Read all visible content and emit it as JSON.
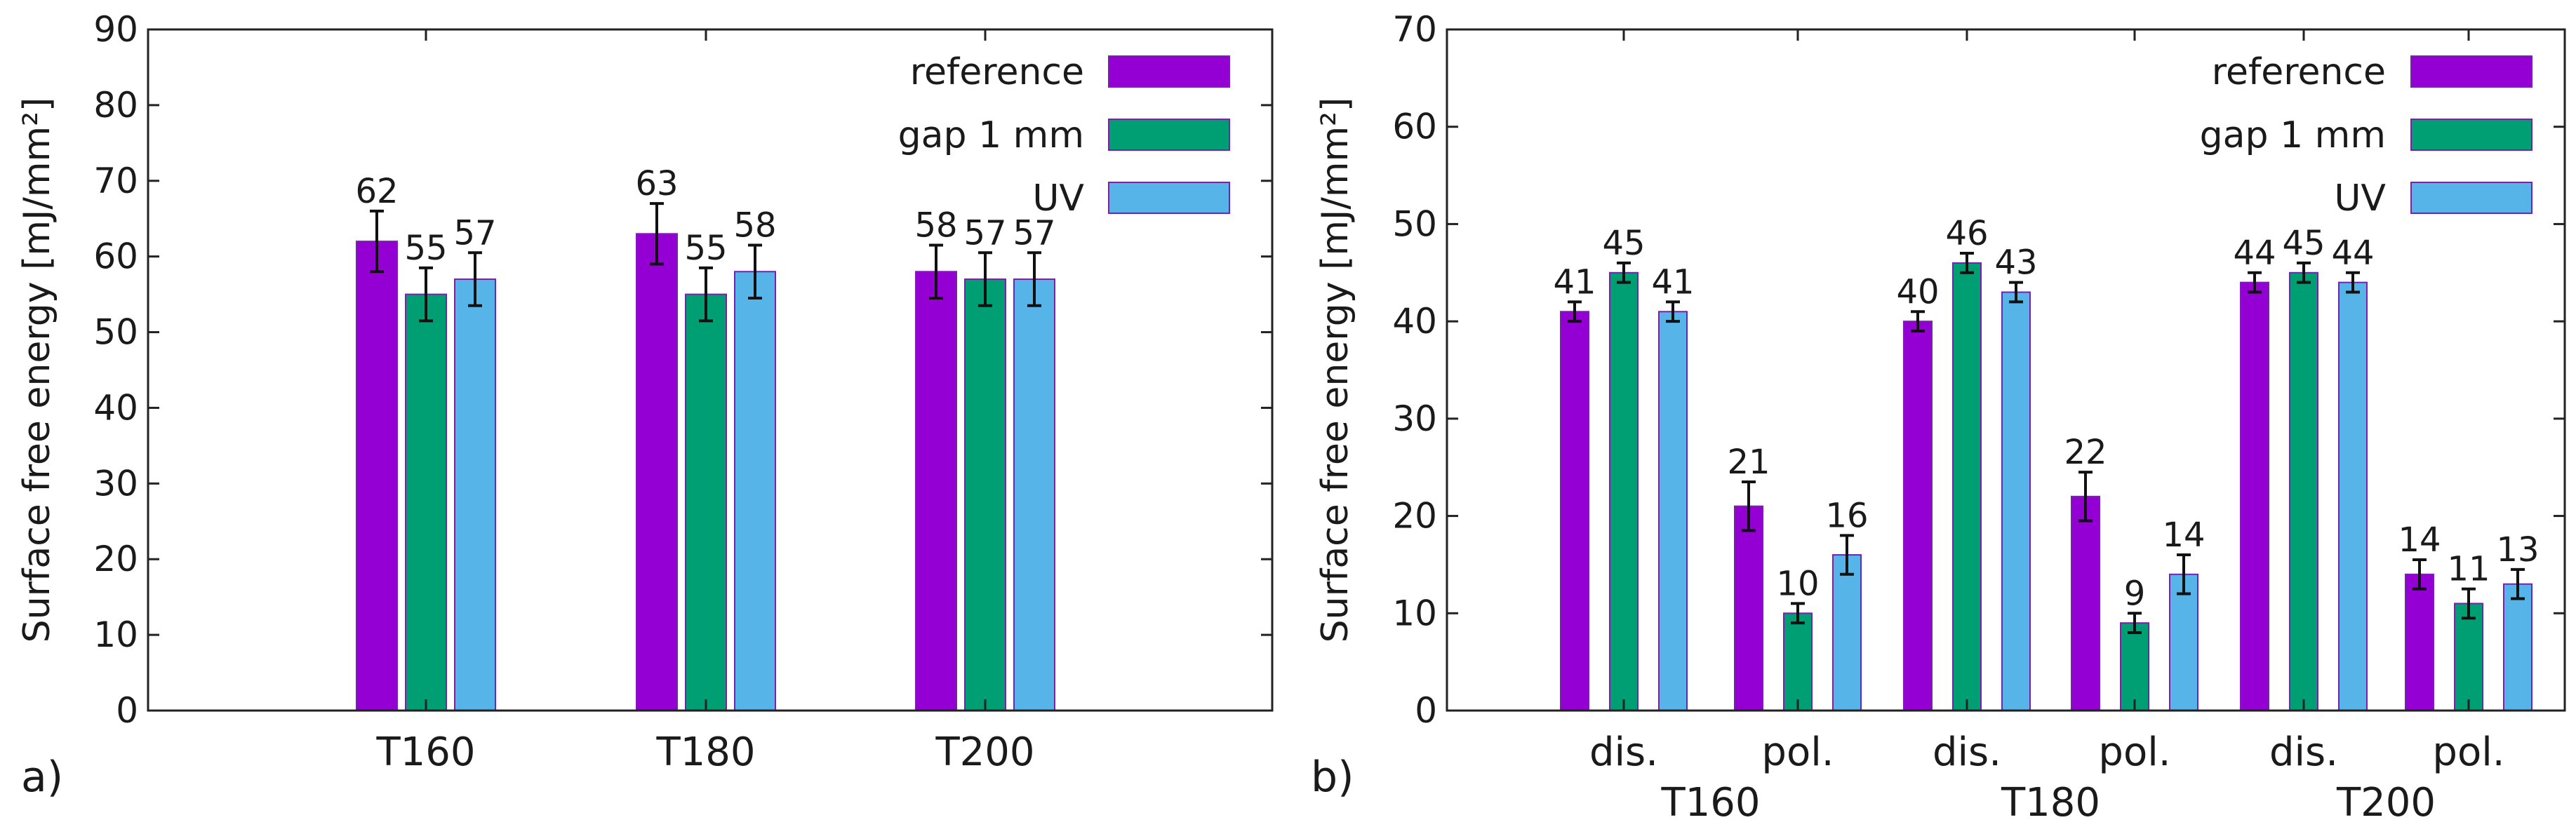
{
  "chart_data": [
    {
      "type": "bar",
      "panel_label": "a)",
      "categories": [
        "T160",
        "T180",
        "T200"
      ],
      "series": [
        {
          "name": "reference",
          "color": "#9400d3",
          "values": [
            62,
            63,
            58
          ],
          "errors": [
            4,
            4,
            3.5
          ]
        },
        {
          "name": "gap 1 mm",
          "color": "#009e73",
          "values": [
            55,
            55,
            57
          ],
          "errors": [
            3.5,
            3.5,
            3.5
          ]
        },
        {
          "name": "UV",
          "color": "#56b4e9",
          "values": [
            57,
            58,
            57
          ],
          "errors": [
            3.5,
            3.5,
            3.5
          ]
        }
      ],
      "data_labels": [
        [
          "62",
          "63",
          "58"
        ],
        [
          "55",
          "55",
          "57"
        ],
        [
          "57",
          "58",
          "57"
        ]
      ],
      "ylabel": "Surface free energy [mJ/mm²]",
      "ylim": [
        0,
        90
      ],
      "yticks": [
        "0",
        "10",
        "20",
        "30",
        "40",
        "50",
        "60",
        "70",
        "80",
        "90"
      ],
      "legend_position": "top-right"
    },
    {
      "type": "bar",
      "panel_label": "b)",
      "groups": [
        "T160",
        "T180",
        "T200"
      ],
      "subcategories": [
        "dis.",
        "pol.",
        "dis.",
        "pol.",
        "dis.",
        "pol."
      ],
      "series": [
        {
          "name": "reference",
          "color": "#9400d3",
          "values": [
            41,
            21,
            40,
            22,
            44,
            14
          ],
          "errors": [
            1,
            2.5,
            1,
            2.5,
            1,
            1.5
          ]
        },
        {
          "name": "gap 1 mm",
          "color": "#009e73",
          "values": [
            45,
            10,
            46,
            9,
            45,
            11
          ],
          "errors": [
            1,
            1,
            1,
            1,
            1,
            1.5
          ]
        },
        {
          "name": "UV",
          "color": "#56b4e9",
          "values": [
            41,
            16,
            43,
            14,
            44,
            13
          ],
          "errors": [
            1,
            2,
            1,
            2,
            1,
            1.5
          ]
        }
      ],
      "data_labels": [
        [
          "41",
          "21",
          "40",
          "22",
          "44",
          "14"
        ],
        [
          "45",
          "10",
          "46",
          "9",
          "45",
          "11"
        ],
        [
          "41",
          "16",
          "43",
          "14",
          "44",
          "13"
        ]
      ],
      "ylabel": "Surface free energy [mJ/mm²]",
      "ylim": [
        0,
        70
      ],
      "yticks": [
        "0",
        "10",
        "20",
        "30",
        "40",
        "50",
        "60",
        "70"
      ],
      "legend_position": "top-right"
    }
  ]
}
